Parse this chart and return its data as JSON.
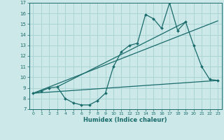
{
  "title": "",
  "xlabel": "Humidex (Indice chaleur)",
  "ylabel": "",
  "bg_color": "#cce8e8",
  "line_color": "#1a6b6b",
  "grid_color": "#aad4d4",
  "xlim": [
    -0.5,
    23.5
  ],
  "ylim": [
    7,
    17
  ],
  "xticks": [
    0,
    1,
    2,
    3,
    4,
    5,
    6,
    7,
    8,
    9,
    10,
    11,
    12,
    13,
    14,
    15,
    16,
    17,
    18,
    19,
    20,
    21,
    22,
    23
  ],
  "yticks": [
    7,
    8,
    9,
    10,
    11,
    12,
    13,
    14,
    15,
    16,
    17
  ],
  "series1_x": [
    0,
    1,
    2,
    3,
    4,
    5,
    6,
    7,
    8,
    9,
    10,
    11,
    12,
    13,
    14,
    15,
    16,
    17,
    18,
    19,
    20,
    21,
    22,
    23
  ],
  "series1_y": [
    8.5,
    8.7,
    9.0,
    9.1,
    8.0,
    7.6,
    7.4,
    7.4,
    7.8,
    8.5,
    11.0,
    12.4,
    13.0,
    13.2,
    15.9,
    15.5,
    14.6,
    17.0,
    14.4,
    15.2,
    13.0,
    11.0,
    9.8,
    9.7
  ],
  "line1_x": [
    0,
    23
  ],
  "line1_y": [
    8.5,
    9.7
  ],
  "line2_x": [
    0,
    23
  ],
  "line2_y": [
    8.5,
    15.3
  ],
  "line3_x": [
    3,
    19
  ],
  "line3_y": [
    9.1,
    15.2
  ]
}
